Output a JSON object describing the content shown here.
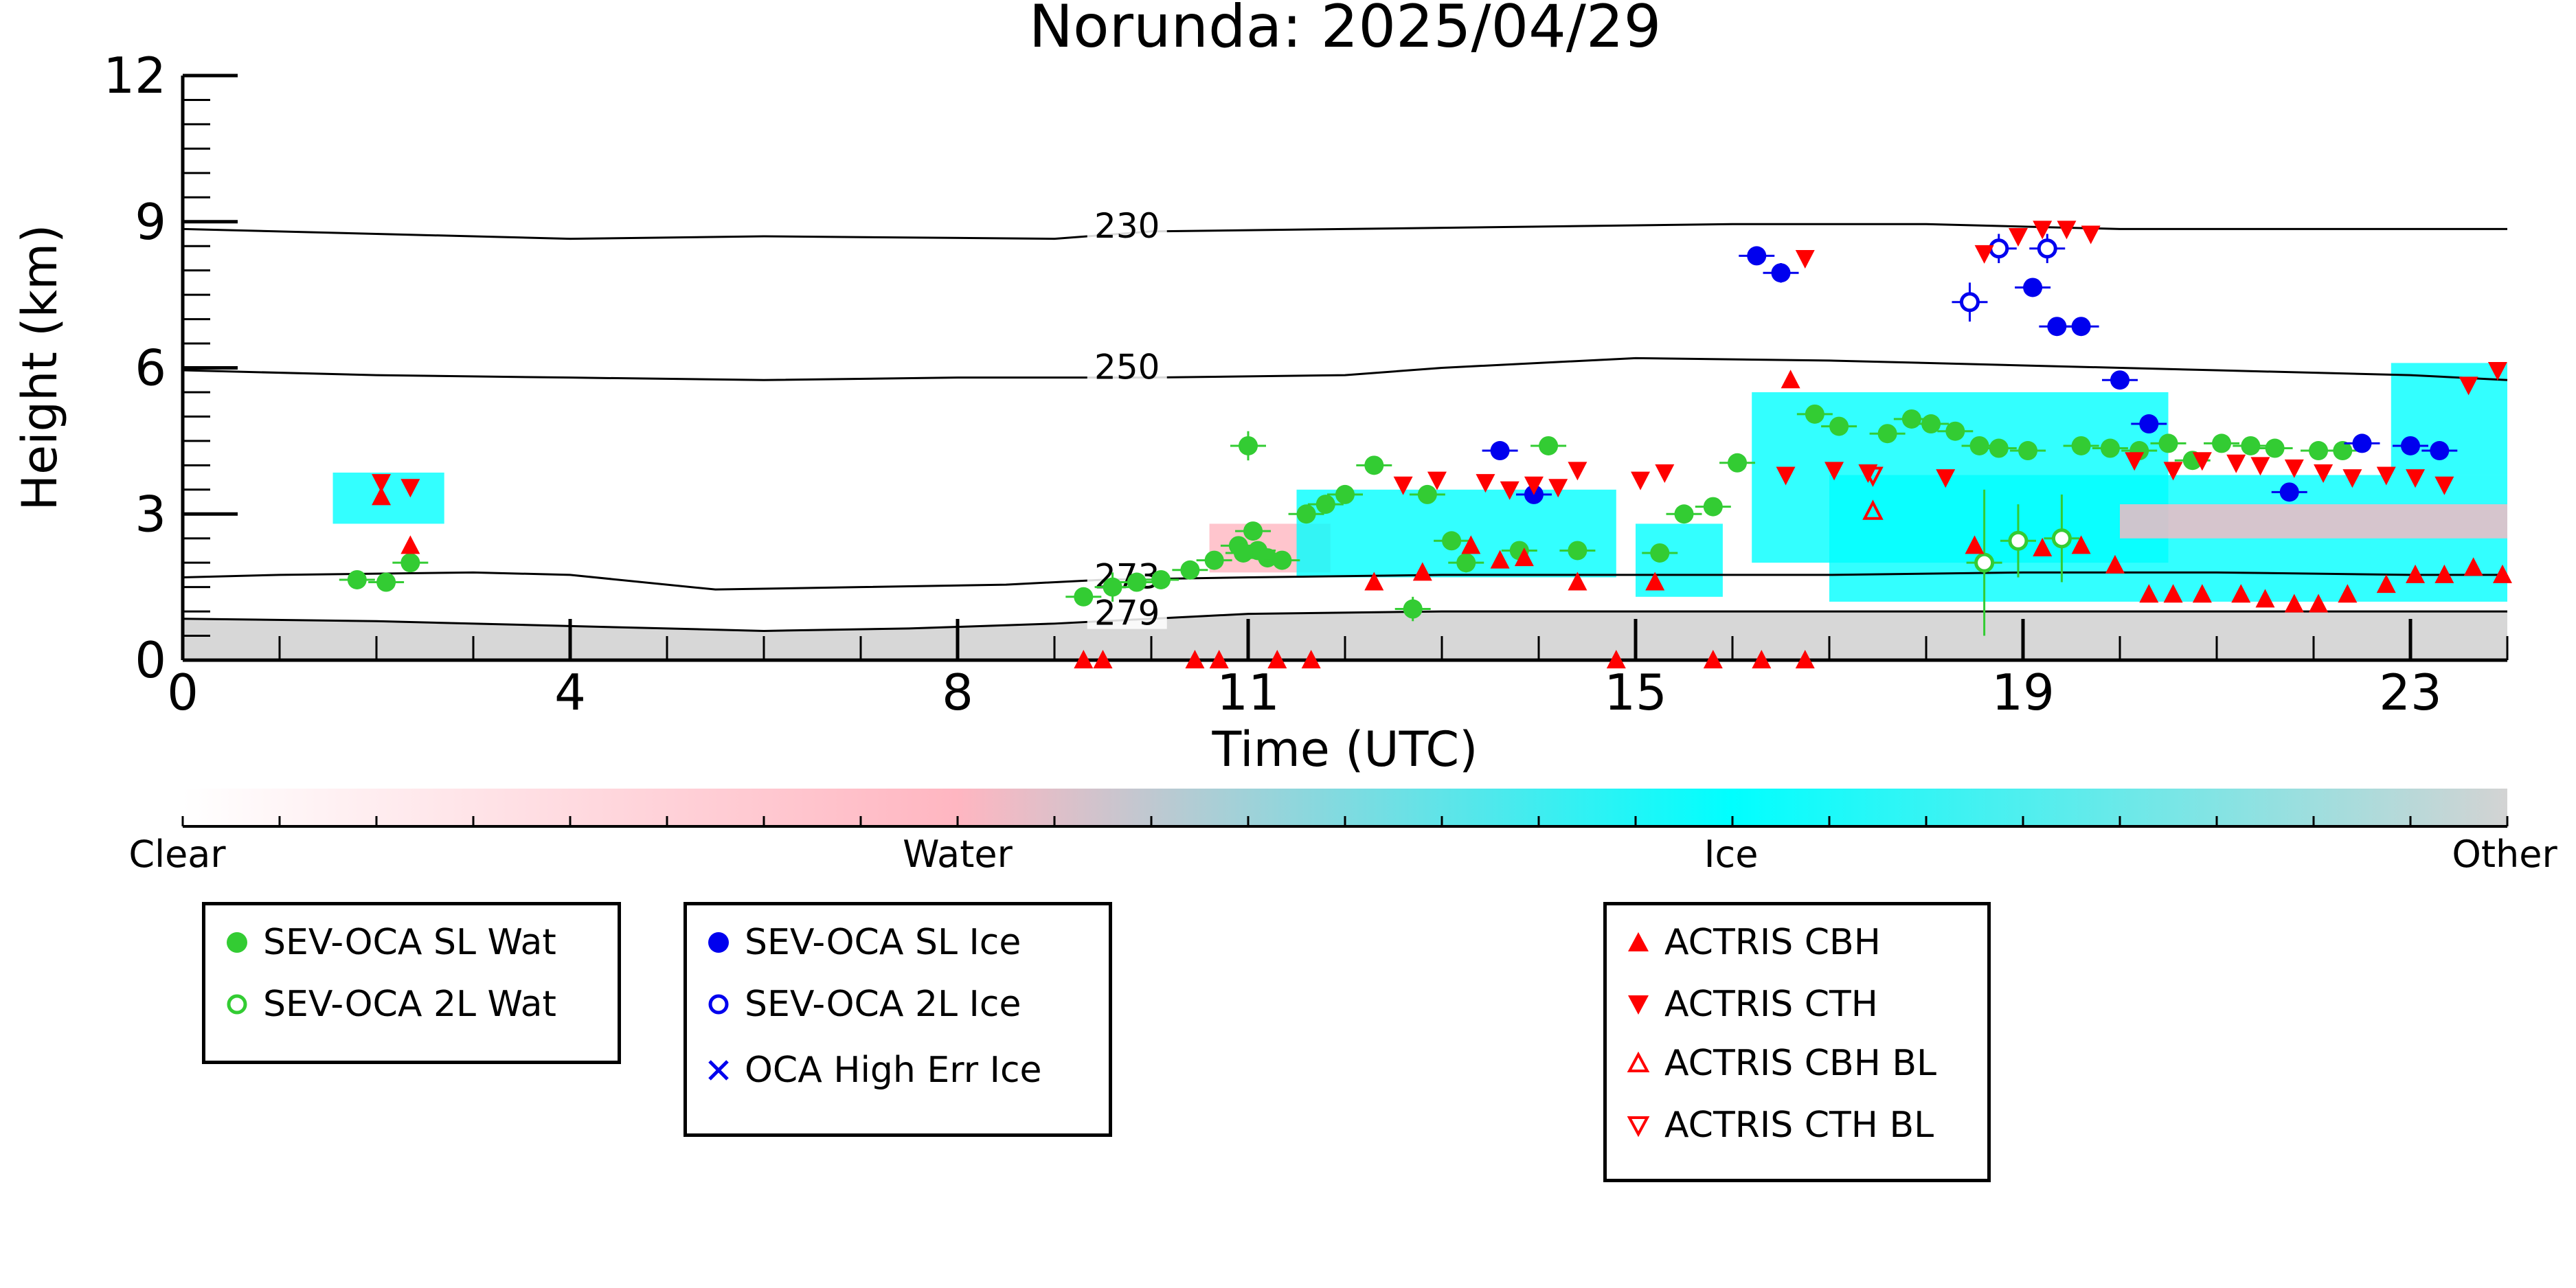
{
  "chart_data": {
    "type": "scatter",
    "title": "Norunda: 2025/04/29",
    "xlabel": "Time (UTC)",
    "ylabel": "Height (km)",
    "xlim": [
      0,
      24
    ],
    "ylim": [
      0,
      12
    ],
    "xticks": [
      0,
      4,
      8,
      11,
      15,
      19,
      23
    ],
    "xtick_labels": [
      "0",
      "4",
      "8",
      "11",
      "15",
      "19",
      "23"
    ],
    "yticks": [
      0,
      3,
      6,
      9,
      12
    ],
    "ytick_labels": [
      "0",
      "3",
      "6",
      "9",
      "12"
    ],
    "colorbar": {
      "labels": [
        "Clear",
        "Water",
        "Ice",
        "Other"
      ],
      "colors": [
        "#ffffff",
        "#ffb6c1",
        "#00ffff",
        "#d3d3d3"
      ]
    },
    "isotherms": [
      {
        "label": "230",
        "x": [
          0,
          2,
          4,
          6,
          9,
          10,
          12,
          14,
          16,
          18,
          19,
          20,
          22,
          24
        ],
        "y": [
          8.85,
          8.75,
          8.65,
          8.7,
          8.65,
          8.8,
          8.85,
          8.9,
          8.95,
          8.95,
          8.9,
          8.85,
          8.85,
          8.85
        ]
      },
      {
        "label": "250",
        "x": [
          0,
          2,
          4,
          6,
          8,
          10,
          12,
          13,
          15,
          17,
          19,
          21,
          23,
          24
        ],
        "y": [
          5.95,
          5.85,
          5.8,
          5.75,
          5.8,
          5.8,
          5.85,
          6.0,
          6.2,
          6.15,
          6.05,
          5.95,
          5.85,
          5.75
        ]
      },
      {
        "label": "273",
        "x": [
          0,
          1,
          3,
          4,
          5.5,
          7,
          8.5,
          9.5,
          11,
          13,
          15,
          17,
          19,
          21,
          23,
          24
        ],
        "y": [
          1.7,
          1.75,
          1.8,
          1.75,
          1.45,
          1.5,
          1.55,
          1.65,
          1.7,
          1.75,
          1.75,
          1.75,
          1.8,
          1.8,
          1.75,
          1.75
        ]
      },
      {
        "label": "279",
        "x": [
          0,
          2,
          4,
          6,
          7.5,
          9,
          10,
          11,
          13,
          15,
          17,
          19,
          21,
          23,
          24
        ],
        "y": [
          0.85,
          0.8,
          0.7,
          0.6,
          0.65,
          0.75,
          0.85,
          0.95,
          1.0,
          1.0,
          1.0,
          1.0,
          1.0,
          1.0,
          1.0
        ]
      }
    ],
    "series": [
      {
        "name": "SEV-OCA SL Wat",
        "marker": "filled-circle",
        "color": "#33cc33",
        "x": [
          1.8,
          2.1,
          2.35,
          9.3,
          9.6,
          9.85,
          10.1,
          10.4,
          10.65,
          10.9,
          11.1,
          10.95,
          11.2,
          11.35,
          11.05,
          11.0,
          11.6,
          11.8,
          12.0,
          12.3,
          12.7,
          12.85,
          13.1,
          13.25,
          13.8,
          14.1,
          14.4,
          15.25,
          15.5,
          15.8,
          16.05,
          16.85,
          17.1,
          17.6,
          17.85,
          18.05,
          18.3,
          18.55,
          18.75,
          19.05,
          19.6,
          19.9,
          20.2,
          20.5,
          20.75,
          21.05,
          21.35,
          21.6,
          22.05,
          22.3
        ],
        "y": [
          1.65,
          1.6,
          2.0,
          1.3,
          1.5,
          1.6,
          1.65,
          1.85,
          2.05,
          2.35,
          2.25,
          2.2,
          2.1,
          2.05,
          2.65,
          4.4,
          3.0,
          3.2,
          3.4,
          4.0,
          1.05,
          3.4,
          2.45,
          2.0,
          2.25,
          4.4,
          2.25,
          2.2,
          3.0,
          3.15,
          4.05,
          5.05,
          4.8,
          4.65,
          4.95,
          4.85,
          4.7,
          4.4,
          4.35,
          4.3,
          4.4,
          4.35,
          4.3,
          4.45,
          4.1,
          4.45,
          4.4,
          4.35,
          4.3,
          4.3
        ],
        "err": [
          0.05,
          0.1,
          0.15,
          0.1,
          0.3,
          0.1,
          0.1,
          0.1,
          0.1,
          0.1,
          0.1,
          0.1,
          0.1,
          0.1,
          0.1,
          0.3,
          0.1,
          0.1,
          0.15,
          0.1,
          0.25,
          0.1,
          0.1,
          0.2,
          0.1,
          0.1,
          0.1,
          0.1,
          0.1,
          0.1,
          0.1,
          0.1,
          0.1,
          0.1,
          0.1,
          0.1,
          0.1,
          0.1,
          0.1,
          0.1,
          0.1,
          0.1,
          0.1,
          0.1,
          0.1,
          0.1,
          0.1,
          0.1,
          0.1,
          0.1
        ]
      },
      {
        "name": "SEV-OCA 2L Wat",
        "marker": "open-circle",
        "color": "#33cc33",
        "x": [
          18.6,
          18.95,
          19.4
        ],
        "y": [
          2.0,
          2.45,
          2.5
        ],
        "err": [
          1.5,
          0.75,
          0.9
        ]
      },
      {
        "name": "SEV-OCA SL Ice",
        "marker": "filled-circle",
        "color": "#0000ee",
        "x": [
          13.6,
          13.95,
          16.25,
          16.5,
          19.1,
          19.35,
          19.6,
          20.0,
          20.3,
          21.75,
          22.5,
          23.0,
          23.3
        ],
        "y": [
          4.3,
          3.4,
          8.3,
          7.95,
          7.65,
          6.85,
          6.85,
          5.75,
          4.85,
          3.45,
          4.45,
          4.4,
          4.3
        ],
        "err": [
          0.1,
          0.1,
          0.15,
          0.2,
          0.1,
          0.1,
          0.1,
          0.1,
          0.1,
          0.1,
          0.1,
          0.1,
          0.1
        ]
      },
      {
        "name": "SEV-OCA 2L Ice",
        "marker": "open-circle",
        "color": "#0000ee",
        "x": [
          18.45,
          18.75,
          19.25
        ],
        "y": [
          7.35,
          8.45,
          8.45
        ],
        "err": [
          0.4,
          0.3,
          0.3
        ]
      },
      {
        "name": "OCA High Err Ice",
        "marker": "cross",
        "color": "#0000ee",
        "x": [],
        "y": []
      },
      {
        "name": "ACTRIS CBH",
        "marker": "filled-triangle-up",
        "color": "#ff0000",
        "x": [
          2.05,
          2.35,
          9.3,
          9.5,
          10.45,
          10.7,
          11.3,
          11.65,
          12.3,
          12.8,
          13.3,
          13.6,
          13.85,
          14.4,
          14.8,
          15.2,
          15.8,
          16.3,
          16.6,
          16.75,
          18.5,
          19.2,
          19.6,
          19.95,
          20.3,
          20.55,
          20.85,
          21.25,
          21.5,
          21.8,
          22.05,
          22.35,
          22.75,
          23.05,
          23.35,
          23.65,
          23.95
        ],
        "y": [
          3.35,
          2.35,
          0.0,
          0.0,
          0.0,
          0.0,
          0.0,
          0.0,
          1.6,
          1.8,
          2.35,
          2.05,
          2.1,
          1.6,
          0.0,
          1.6,
          0.0,
          0.0,
          5.75,
          0.0,
          2.35,
          2.3,
          2.35,
          1.95,
          1.35,
          1.35,
          1.35,
          1.35,
          1.25,
          1.15,
          1.15,
          1.35,
          1.55,
          1.75,
          1.75,
          1.9,
          1.75
        ]
      },
      {
        "name": "ACTRIS CTH",
        "marker": "filled-triangle-down",
        "color": "#ff0000",
        "x": [
          2.05,
          2.35,
          12.6,
          12.95,
          13.45,
          13.7,
          13.95,
          14.2,
          14.4,
          15.05,
          15.3,
          16.55,
          16.75,
          17.05,
          17.4,
          18.2,
          18.6,
          18.95,
          19.2,
          19.45,
          19.7,
          20.15,
          20.55,
          20.85,
          21.2,
          21.45,
          21.8,
          22.1,
          22.4,
          22.75,
          23.05,
          23.35,
          23.6,
          23.9
        ],
        "y": [
          3.65,
          3.55,
          3.6,
          3.7,
          3.65,
          3.5,
          3.6,
          3.55,
          3.9,
          3.7,
          3.85,
          3.8,
          8.25,
          3.9,
          3.85,
          3.75,
          8.35,
          8.7,
          8.85,
          8.85,
          8.75,
          4.1,
          3.9,
          4.1,
          4.05,
          4.0,
          3.95,
          3.85,
          3.75,
          3.8,
          3.75,
          3.6,
          5.65,
          5.95
        ]
      },
      {
        "name": "ACTRIS CBH BL",
        "marker": "open-triangle-up",
        "color": "#ff0000",
        "x": [
          17.45
        ],
        "y": [
          3.05
        ]
      },
      {
        "name": "ACTRIS CTH BL",
        "marker": "open-triangle-down",
        "color": "#ff0000",
        "x": [
          17.45
        ],
        "y": [
          3.8
        ]
      }
    ]
  }
}
